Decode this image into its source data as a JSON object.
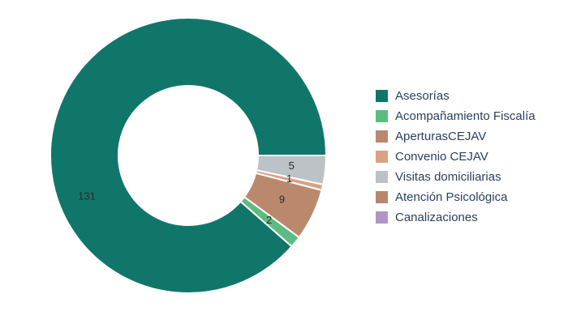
{
  "chart_data": {
    "type": "pie",
    "hole": true,
    "legend_position": "right",
    "categories": [
      "Asesorías",
      "Acompañamiento Fiscalía",
      "AperturasCEJAV",
      "Convenio CEJAV",
      "Visitas domiciliarias",
      "Atención Psicológica",
      "Canalizaciones"
    ],
    "values": [
      131,
      2,
      9,
      1,
      5,
      0,
      0
    ],
    "labels": [
      "131",
      "2",
      "9",
      "1",
      "5",
      "",
      ""
    ],
    "colors": [
      "#11766a",
      "#5dbb82",
      "#ba896d",
      "#d6a383",
      "#bcc2c5",
      "#b6876e",
      "#b294c7"
    ]
  }
}
